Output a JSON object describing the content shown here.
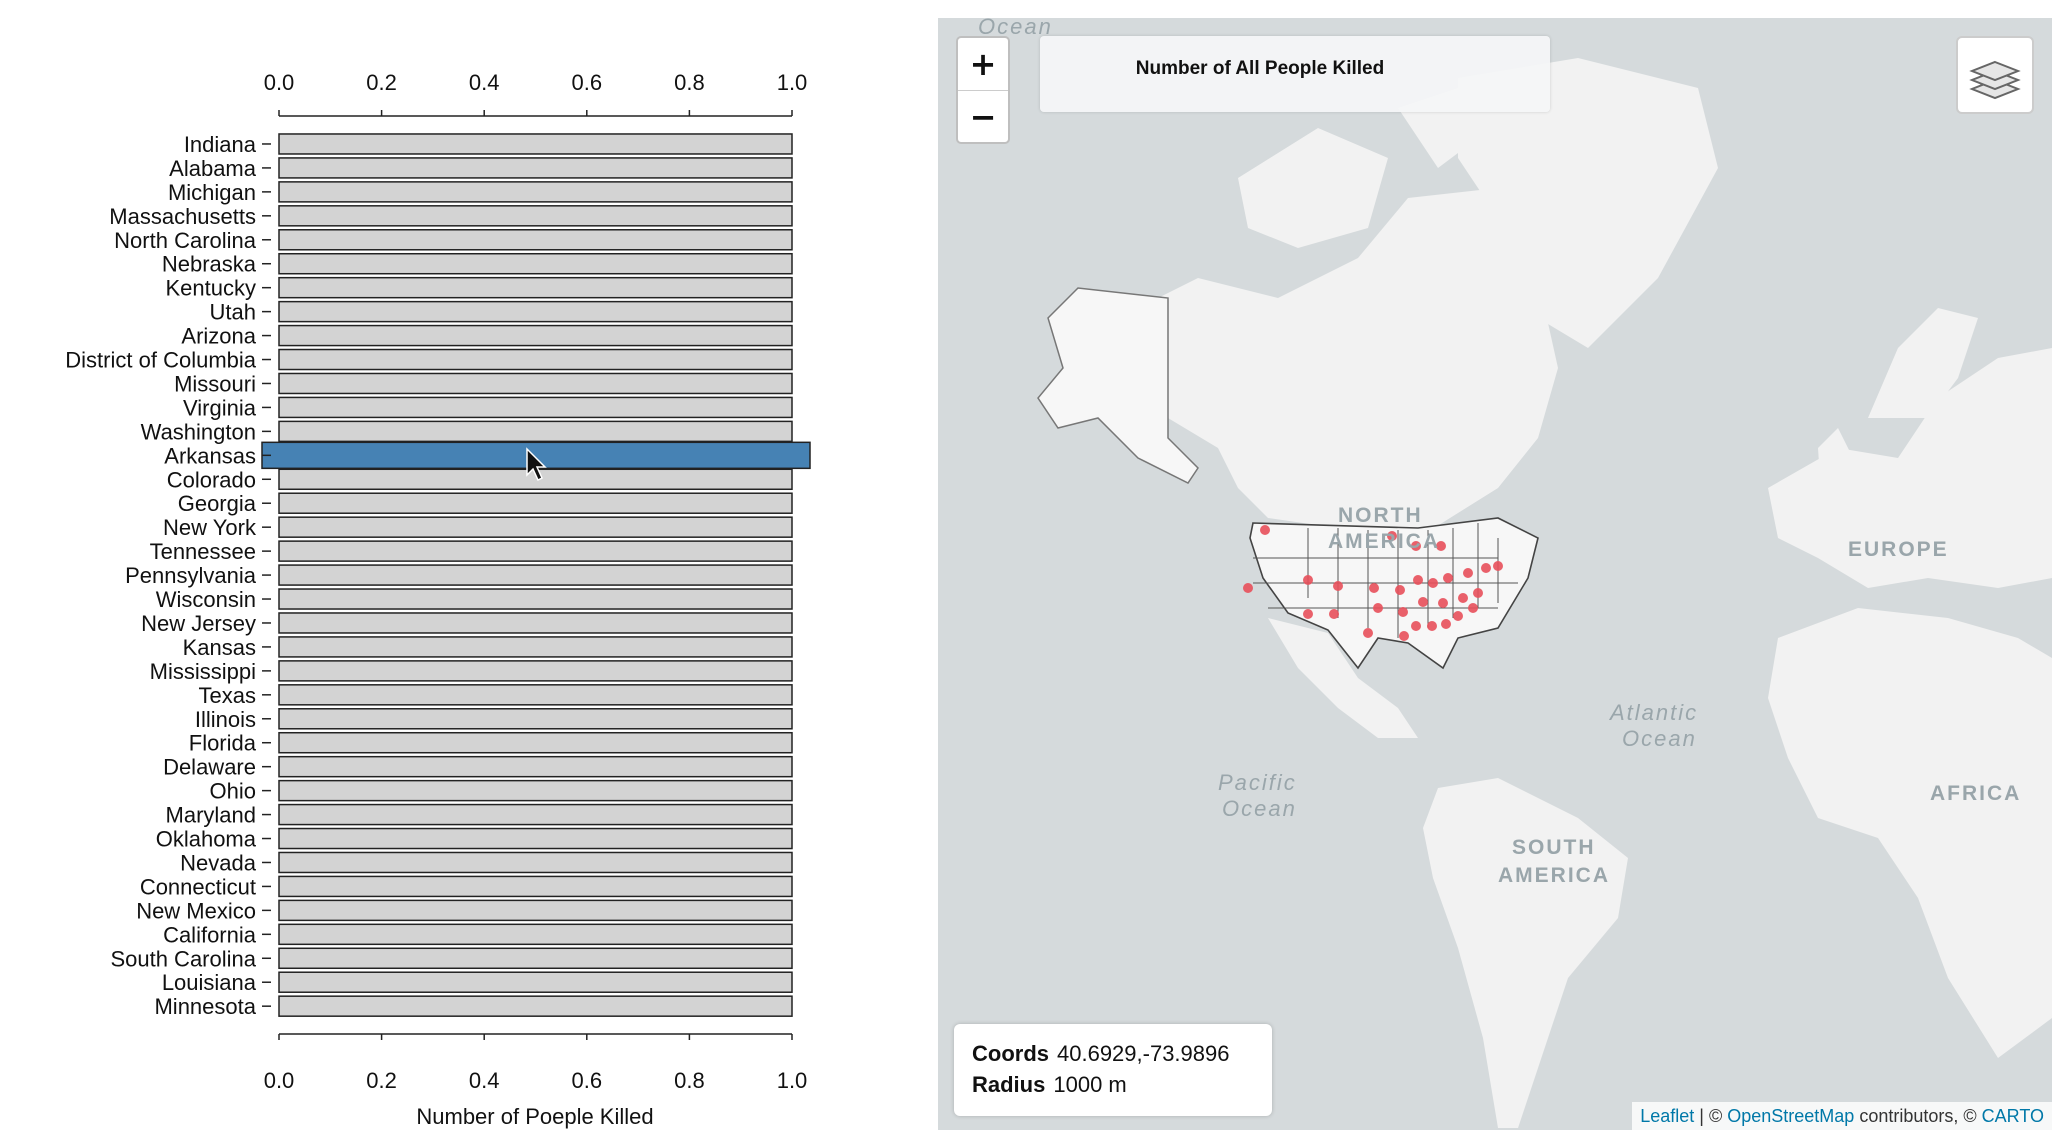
{
  "chart_data": {
    "type": "bar",
    "orientation": "horizontal",
    "categories": [
      "Indiana",
      "Alabama",
      "Michigan",
      "Massachusetts",
      "North Carolina",
      "Nebraska",
      "Kentucky",
      "Utah",
      "Arizona",
      "District of Columbia",
      "Missouri",
      "Virginia",
      "Washington",
      "Arkansas",
      "Colorado",
      "Georgia",
      "New York",
      "Tennessee",
      "Pennsylvania",
      "Wisconsin",
      "New Jersey",
      "Kansas",
      "Mississippi",
      "Texas",
      "Illinois",
      "Florida",
      "Delaware",
      "Ohio",
      "Maryland",
      "Oklahoma",
      "Nevada",
      "Connecticut",
      "New Mexico",
      "California",
      "South Carolina",
      "Louisiana",
      "Minnesota"
    ],
    "values": [
      1,
      1,
      1,
      1,
      1,
      1,
      1,
      1,
      1,
      1,
      1,
      1,
      1,
      1,
      1,
      1,
      1,
      1,
      1,
      1,
      1,
      1,
      1,
      1,
      1,
      1,
      1,
      1,
      1,
      1,
      1,
      1,
      1,
      1,
      1,
      1,
      1
    ],
    "highlighted": "Arkansas",
    "xlim": [
      0,
      1.0
    ],
    "xticks": [
      "0.0",
      "0.2",
      "0.4",
      "0.6",
      "0.8",
      "1.0"
    ],
    "xlabel": "Number of Poeple Killed",
    "colors": {
      "bar": "#d3d3d3",
      "highlight": "#4682b4",
      "stroke": "#222222"
    }
  },
  "map": {
    "legend_title": "Number of All People Killed",
    "zoom_in_label": "+",
    "zoom_out_label": "−",
    "ocean_labels": [
      "Ocean",
      "Pacific",
      "Ocean",
      "Atlantic",
      "Ocean"
    ],
    "continent_labels": [
      "NORTH",
      "AMERICA",
      "EUROPE",
      "AFRICA",
      "SOUTH",
      "AMERICA"
    ],
    "info": {
      "coords_label": "Coords",
      "coords_value": "40.6929,-73.9896",
      "radius_label": "Radius",
      "radius_value": "1000 m"
    },
    "attribution": {
      "leaflet": "Leaflet",
      "sep1": " | © ",
      "osm": "OpenStreetMap",
      "contributors": " contributors, © ",
      "carto": "CARTO"
    },
    "marker_color": "#e8505b"
  }
}
